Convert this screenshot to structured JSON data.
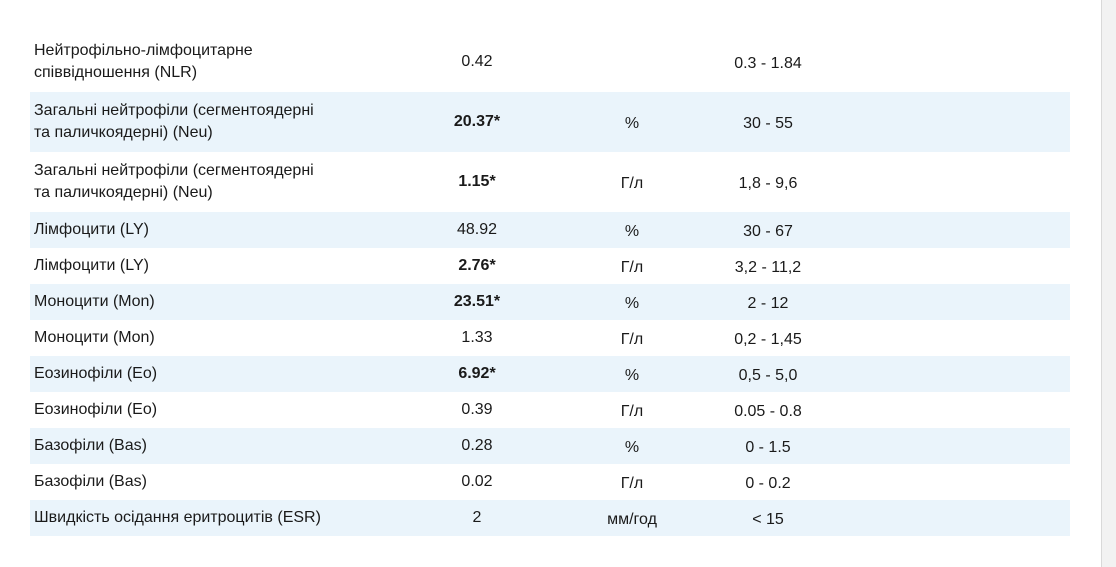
{
  "table": {
    "rows": [
      {
        "name": "Нейтрофільно-лімфоцитарне\nспіввідношення (NLR)",
        "value": "0.42",
        "range": "0.3 - 1.84",
        "bold": false
      },
      {
        "name": "Загальні нейтрофіли (сегментоядерні\nта паличкоядерні) (Neu)",
        "value": "20.37*",
        "unit": "%",
        "range": "30 - 55",
        "bold": true
      },
      {
        "name": "Загальні нейтрофіли (сегментоядерні\nта паличкоядерні) (Neu)",
        "value": "1.15*",
        "unit": "Г/л",
        "range": "1,8 - 9,6",
        "bold": true
      },
      {
        "name": "Лімфоцити (LY)",
        "value": "48.92",
        "unit": "%",
        "range": "30 - 67",
        "bold": false
      },
      {
        "name": "Лімфоцити (LY)",
        "value": "2.76*",
        "unit": "Г/л",
        "range": "3,2 - 11,2",
        "bold": true
      },
      {
        "name": "Моноцити (Mon)",
        "value": "23.51*",
        "unit": "%",
        "range": "2 - 12",
        "bold": true
      },
      {
        "name": "Моноцити (Mon)",
        "value": "1.33",
        "unit": "Г/л",
        "range": "0,2 - 1,45",
        "bold": false
      },
      {
        "name": "Еозинофіли (Eo)",
        "value": "6.92*",
        "unit": "%",
        "range": "0,5 - 5,0",
        "bold": true
      },
      {
        "name": "Еозинофіли (Eo)",
        "value": "0.39",
        "unit": "Г/л",
        "range": "0.05 - 0.8",
        "bold": false
      },
      {
        "name": "Базофіли (Bas)",
        "value": "0.28",
        "unit": "%",
        "range": "0 - 1.5",
        "bold": false
      },
      {
        "name": "Базофіли (Bas)",
        "value": "0.02",
        "unit": "Г/л",
        "range": "0 - 0.2",
        "bold": false
      },
      {
        "name": "Швидкість осідання еритроцитів (ESR)",
        "value": "2",
        "unit": "мм/год",
        "range": "< 15",
        "bold": false
      }
    ]
  }
}
